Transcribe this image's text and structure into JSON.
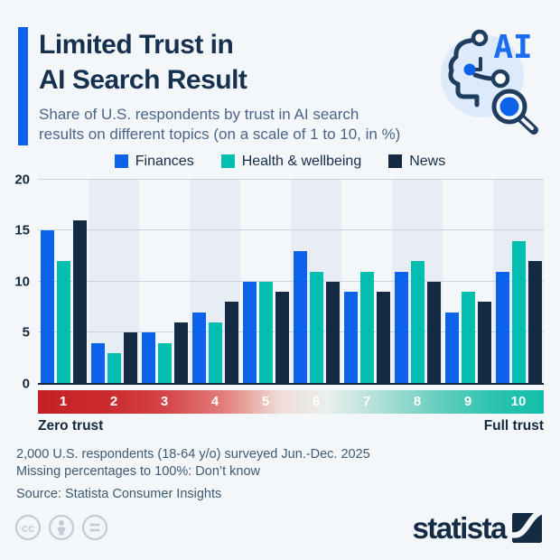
{
  "header": {
    "title_lines": [
      "Limited Trust in",
      "AI Search Result"
    ],
    "subtitle_lines": [
      "Share of U.S. respondents by trust in AI search",
      "results on different topics (on a scale of 1 to 10, in %)"
    ],
    "icon_label": "AI",
    "accent_color": "#0c63e9"
  },
  "chart_data": {
    "type": "bar",
    "categories": [
      "1",
      "2",
      "3",
      "4",
      "5",
      "6",
      "7",
      "8",
      "9",
      "10"
    ],
    "series": [
      {
        "name": "Finances",
        "color": "#0c63e9",
        "values": [
          15,
          4,
          5,
          7,
          10,
          13,
          9,
          11,
          7,
          11
        ]
      },
      {
        "name": "Health & wellbeing",
        "color": "#00bfb0",
        "values": [
          12,
          3,
          4,
          6,
          10,
          11,
          11,
          12,
          9,
          14
        ]
      },
      {
        "name": "News",
        "color": "#132a42",
        "values": [
          16,
          5,
          6,
          8,
          9,
          10,
          9,
          10,
          8,
          12
        ]
      }
    ],
    "title": "Limited Trust in AI Search Result",
    "ylabel": "",
    "xlabel": "",
    "ylim": [
      0,
      20
    ],
    "yticks": [
      0,
      5,
      10,
      15,
      20
    ],
    "grid": true,
    "legend_position": "top",
    "band_colors": [
      "#f3f7fa",
      "#e8edf4"
    ],
    "grid_color": "#cbd3de",
    "baseline_color": "#14293e",
    "x_axis": {
      "left_label": "Zero trust",
      "right_label": "Full trust",
      "gradient_stops": [
        "#c32026 0%",
        "#cb2a2e 13%",
        "#d54346 25%",
        "#e3807c 37%",
        "#f0ddd8 48%",
        "#e9efec 57%",
        "#abdfd5 68%",
        "#62cdbc 80%",
        "#2cc3af 90%",
        "#10bfa9 100%"
      ]
    }
  },
  "footer": {
    "notes": [
      "2,000 U.S. respondents (18-64 y/o) surveyed Jun.-Dec. 2025",
      "Missing percentages to 100%: Don’t know"
    ],
    "source": "Source: Statista Consumer Insights"
  },
  "branding": {
    "logo_text": "statista",
    "cc_glyph": "cc",
    "license_icon_names": [
      "cc-license-icon",
      "attribution-person-icon",
      "equals-icon"
    ]
  }
}
